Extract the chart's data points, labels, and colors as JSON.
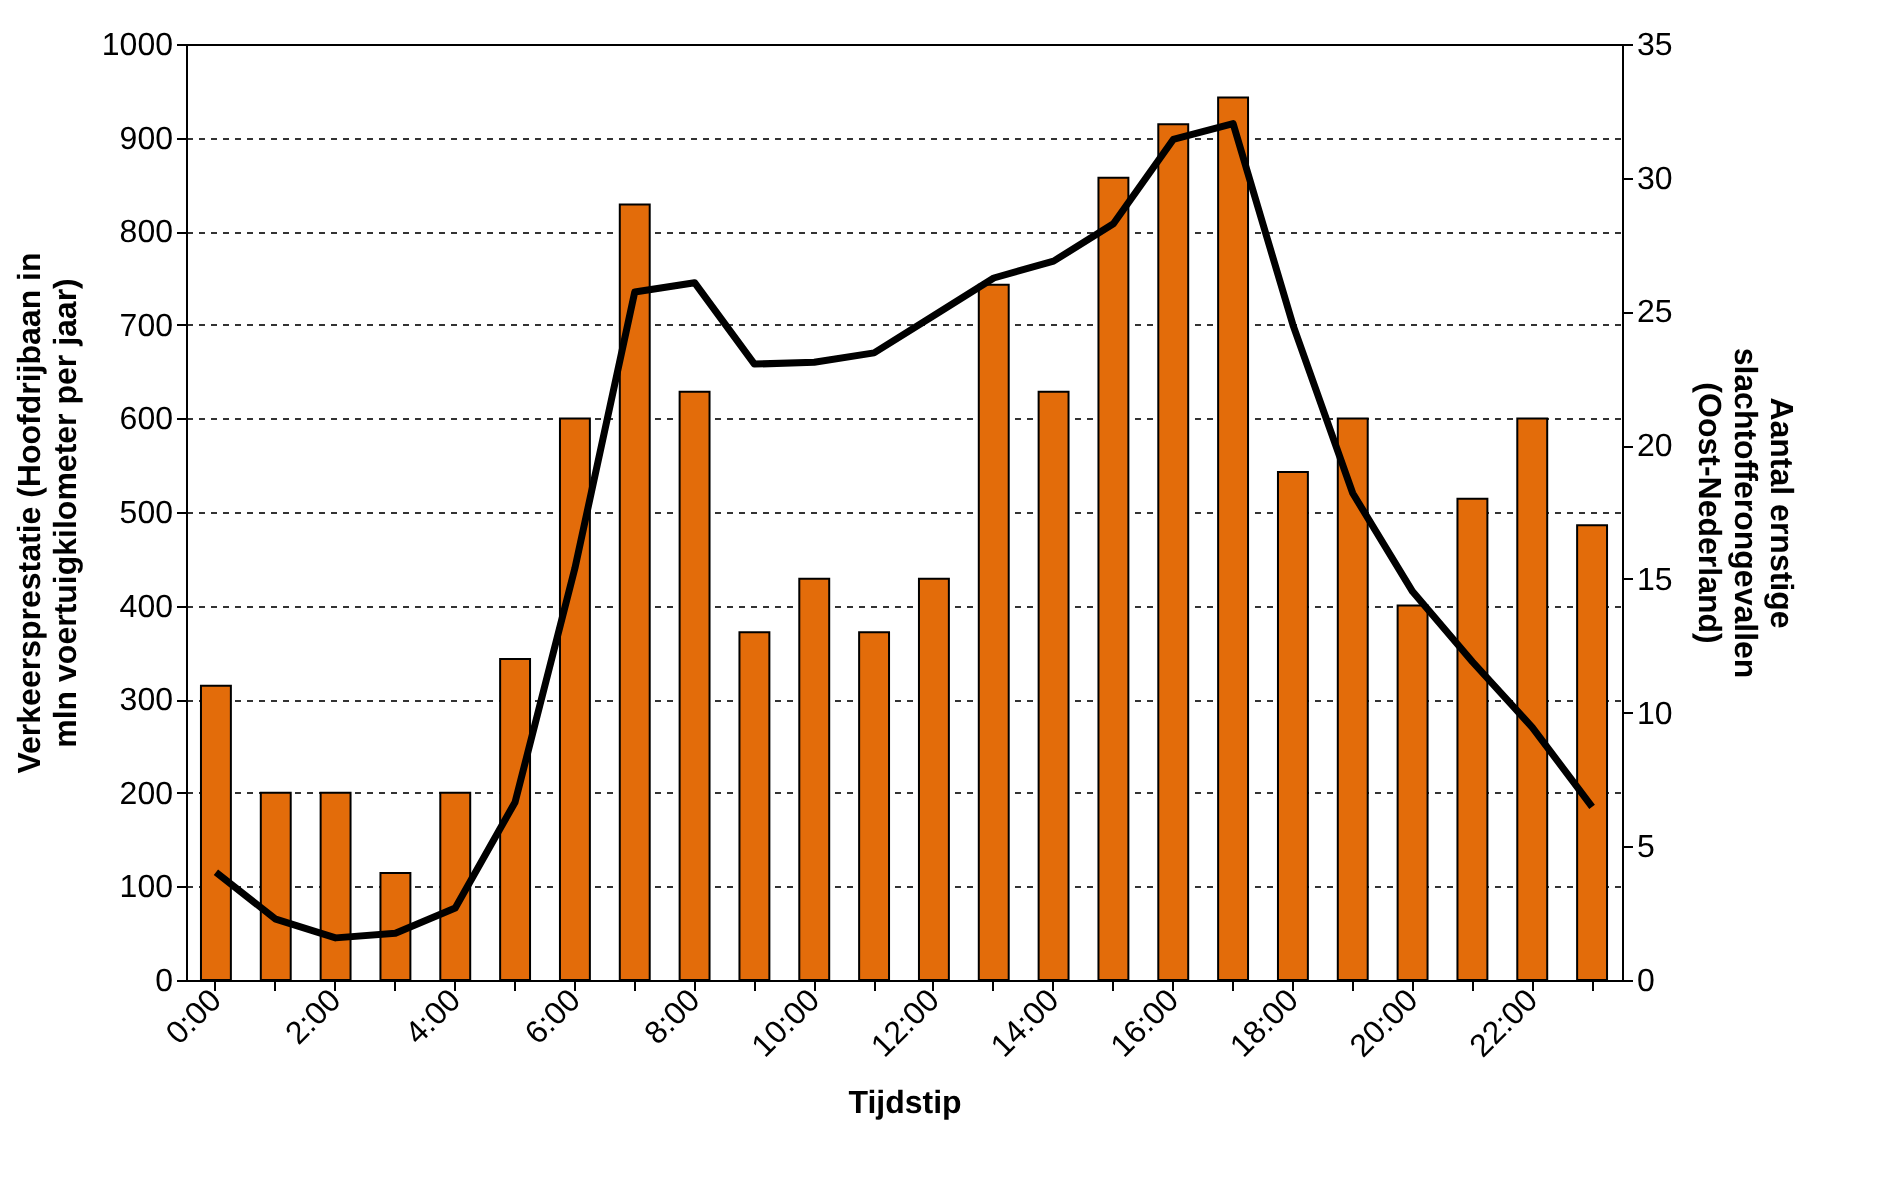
{
  "chart_data": {
    "type": "bar",
    "xlabel": "Tijdstip",
    "ylabel": "Verkeersprestatie (Hoofdrijbaan in mln voertuigkilometer per jaar)",
    "y2label": "Aantal ernstige slachtofferongevallen (Oost-Nederland)",
    "categories": [
      "0:00",
      null,
      "2:00",
      null,
      "4:00",
      null,
      "6:00",
      null,
      "8:00",
      null,
      "10:00",
      null,
      "12:00",
      null,
      "14:00",
      null,
      "16:00",
      null,
      "18:00",
      null,
      "20:00",
      null,
      "22:00",
      null
    ],
    "series": [
      {
        "axis": "y2",
        "color": "#e36c0a",
        "values": [
          11,
          7,
          7,
          4,
          7,
          12,
          21,
          29,
          22,
          13,
          15,
          13,
          15,
          26,
          22,
          30,
          32,
          33,
          19,
          21,
          14,
          18,
          21,
          17
        ]
      },
      {
        "type": "line",
        "color": "#000000",
        "values": [
          115,
          65,
          45,
          50,
          77,
          190,
          440,
          735,
          745,
          658,
          660,
          670,
          710,
          750,
          768,
          808,
          898,
          915,
          700,
          520,
          415,
          340,
          270,
          185
        ]
      }
    ],
    "ylim": [
      0,
      1000
    ],
    "yticks": [
      0,
      100,
      200,
      300,
      400,
      500,
      600,
      700,
      800,
      900,
      1000
    ],
    "y2lim": [
      0,
      35
    ],
    "y2ticks": [
      0,
      5,
      10,
      15,
      20,
      25,
      30,
      35
    ],
    "grid": "y",
    "marker": "none",
    "line_style": "solid"
  }
}
